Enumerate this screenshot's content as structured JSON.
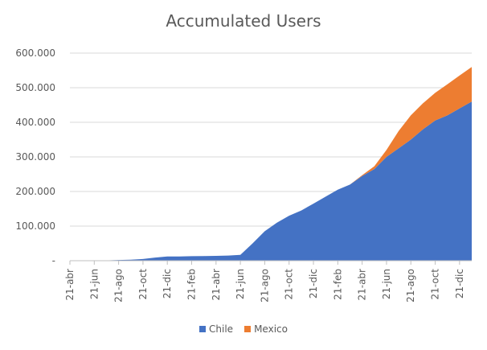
{
  "chart_data": {
    "type": "area",
    "stacked": true,
    "title": "Accumulated Users",
    "xlabel": "",
    "ylabel": "",
    "ylim": [
      0,
      600000
    ],
    "yticks": [
      0,
      100000,
      200000,
      300000,
      400000,
      500000,
      600000
    ],
    "ytick_labels": [
      "-",
      "100.000",
      "200.000",
      "300.000",
      "400.000",
      "500.000",
      "600.000"
    ],
    "xtick_labels": [
      "21-abr",
      "21-jun",
      "21-ago",
      "21-oct",
      "21-dic",
      "21-feb",
      "21-abr",
      "21-jun",
      "21-ago",
      "21-oct",
      "21-dic",
      "21-feb",
      "21-abr",
      "21-jun",
      "21-ago",
      "21-oct",
      "21-dic"
    ],
    "x": [
      "21-abr",
      "",
      "21-jun",
      "",
      "21-ago",
      "",
      "21-oct",
      "",
      "21-dic",
      "",
      "21-feb",
      "",
      "21-abr",
      "",
      "21-jun",
      "",
      "21-ago",
      "",
      "21-oct",
      "",
      "21-dic",
      "",
      "21-feb",
      "",
      "21-abr",
      "",
      "21-jun",
      "",
      "21-ago",
      "",
      "21-oct",
      "",
      "21-dic",
      ""
    ],
    "series": [
      {
        "name": "Chile",
        "color": "#4472C4",
        "values": [
          0,
          0,
          500,
          1000,
          2000,
          3000,
          5000,
          9000,
          12000,
          12000,
          13000,
          13500,
          14000,
          15000,
          17000,
          50000,
          85000,
          110000,
          130000,
          145000,
          165000,
          185000,
          205000,
          220000,
          245000,
          265000,
          300000,
          325000,
          350000,
          380000,
          405000,
          420000,
          440000,
          460000
        ]
      },
      {
        "name": "Mexico",
        "color": "#ED7D31",
        "values": [
          0,
          0,
          0,
          0,
          0,
          0,
          0,
          0,
          0,
          0,
          0,
          0,
          0,
          0,
          0,
          0,
          0,
          0,
          0,
          0,
          0,
          0,
          0,
          0,
          2000,
          8000,
          20000,
          50000,
          70000,
          75000,
          80000,
          90000,
          95000,
          100000
        ]
      }
    ],
    "grid": true,
    "legend": "bottom"
  }
}
